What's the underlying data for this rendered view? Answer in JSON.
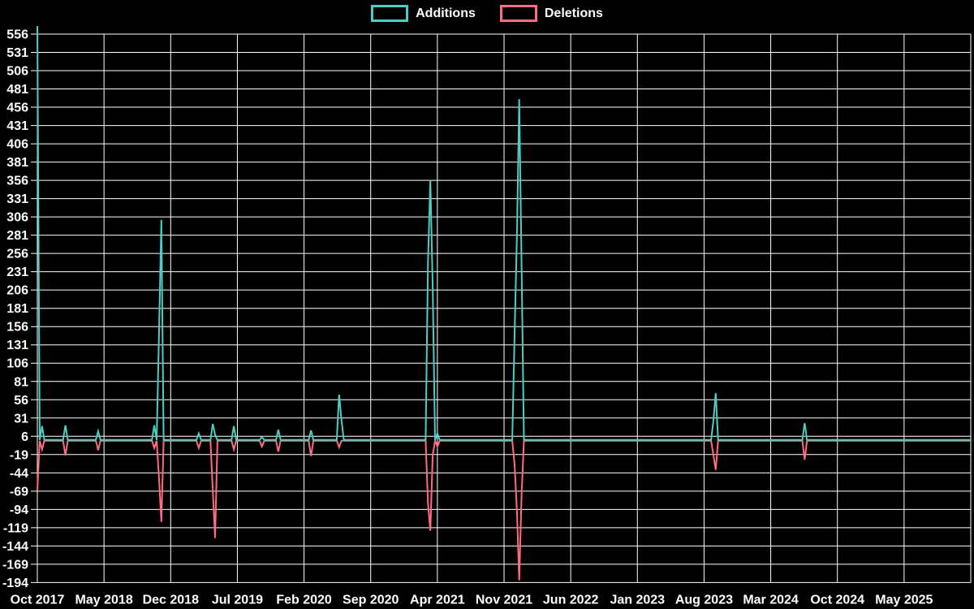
{
  "legend": {
    "additions_label": "Additions",
    "deletions_label": "Deletions"
  },
  "colors": {
    "background": "#000000",
    "additions": "#4ECDC4",
    "deletions": "#FF6B81",
    "grid": "#FFFFFF",
    "text": "#FFFFFF"
  },
  "chart_data": {
    "type": "line",
    "title": "",
    "xlabel": "",
    "ylabel": "",
    "grid": true,
    "legend_position": "top-center",
    "x_unit": "week",
    "weeks_total": 400,
    "ylim": [
      -194,
      567
    ],
    "y_ticks": [
      556,
      531,
      506,
      481,
      456,
      431,
      406,
      381,
      356,
      331,
      306,
      281,
      256,
      231,
      206,
      181,
      156,
      131,
      106,
      81,
      56,
      31,
      6,
      -19,
      -44,
      -69,
      -94,
      -119,
      -144,
      -169,
      -194
    ],
    "x_tick_labels": [
      "Oct 2017",
      "May 2018",
      "Dec 2018",
      "Jul 2019",
      "Feb 2020",
      "Sep 2020",
      "Apr 2021",
      "Nov 2021",
      "Jun 2022",
      "Jan 2023",
      "Aug 2023",
      "Mar 2024",
      "Oct 2024",
      "May 2025"
    ],
    "series": [
      {
        "name": "Additions",
        "color": "#4ECDC4",
        "baseline": 1,
        "spikes_week_value": [
          [
            0,
            567
          ],
          [
            2,
            20
          ],
          [
            12,
            21
          ],
          [
            26,
            13
          ],
          [
            50,
            21
          ],
          [
            52,
            146
          ],
          [
            53,
            302
          ],
          [
            69,
            10
          ],
          [
            75,
            23
          ],
          [
            76,
            8
          ],
          [
            84,
            20
          ],
          [
            96,
            5
          ],
          [
            103,
            15
          ],
          [
            117,
            14
          ],
          [
            129,
            63
          ],
          [
            130,
            28
          ],
          [
            167,
            245
          ],
          [
            168,
            356
          ],
          [
            169,
            210
          ],
          [
            171,
            10
          ],
          [
            204,
            145
          ],
          [
            205,
            282
          ],
          [
            206,
            467
          ],
          [
            207,
            239
          ],
          [
            289,
            28
          ],
          [
            290,
            65
          ],
          [
            328,
            24
          ]
        ]
      },
      {
        "name": "Deletions",
        "color": "#FF6B81",
        "baseline": 0,
        "spikes_week_value": [
          [
            0,
            -69
          ],
          [
            2,
            -12
          ],
          [
            12,
            -20
          ],
          [
            26,
            -13
          ],
          [
            50,
            -10
          ],
          [
            52,
            -51
          ],
          [
            53,
            -111
          ],
          [
            69,
            -10
          ],
          [
            75,
            -69
          ],
          [
            76,
            -133
          ],
          [
            84,
            -12
          ],
          [
            96,
            -8
          ],
          [
            103,
            -15
          ],
          [
            117,
            -21
          ],
          [
            129,
            -9
          ],
          [
            167,
            -86
          ],
          [
            168,
            -123
          ],
          [
            169,
            -20
          ],
          [
            171,
            -8
          ],
          [
            204,
            -33
          ],
          [
            205,
            -97
          ],
          [
            206,
            -191
          ],
          [
            207,
            -74
          ],
          [
            289,
            -20
          ],
          [
            290,
            -40
          ],
          [
            328,
            -26
          ]
        ]
      }
    ]
  }
}
